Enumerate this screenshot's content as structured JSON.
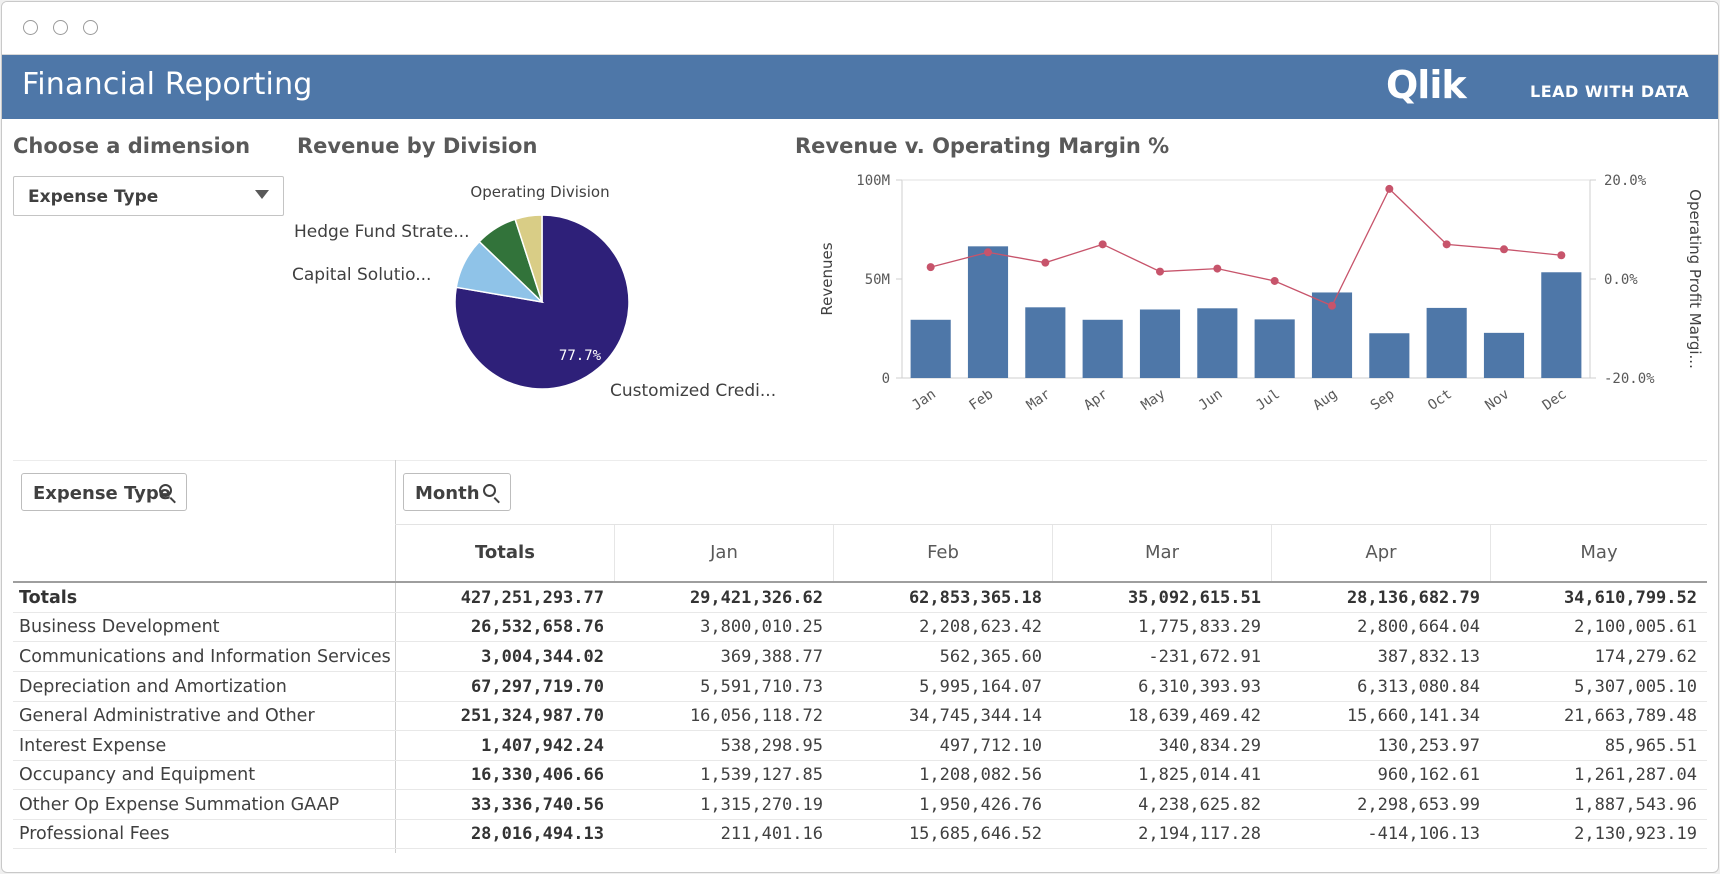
{
  "window": {
    "controls": [
      "close",
      "minimize",
      "maximize"
    ]
  },
  "banner": {
    "title": "Financial Reporting",
    "brand": "Qlik",
    "tagline": "LEAD WITH DATA",
    "color": "#4e77a8"
  },
  "dimension_panel": {
    "title": "Choose a dimension",
    "selected": "Expense Type"
  },
  "pie_panel": {
    "title": "Revenue by Division",
    "legend_title": "Operating Division",
    "slice_labels": [
      "Customized Credi...",
      "Capital Solutio...",
      "Hedge Fund Strate...",
      ""
    ],
    "percent_label": "77.7%"
  },
  "combo_panel": {
    "title": "Revenue v. Operating Margin %",
    "y_left_label": "Revenues",
    "y_right_label": "Operating Profit Margi..."
  },
  "chart_data": [
    {
      "type": "pie",
      "title": "Revenue by Division",
      "legend_title": "Operating Division",
      "slices": [
        {
          "label": "Customized Credi...",
          "value": 77.7,
          "color": "#2e2079"
        },
        {
          "label": "Capital Solutio...",
          "value": 9.5,
          "color": "#8fc3e8"
        },
        {
          "label": "Hedge Fund Strate...",
          "value": 7.8,
          "color": "#32733a"
        },
        {
          "label": "",
          "value": 5.0,
          "color": "#d9cd86"
        }
      ]
    },
    {
      "type": "bar",
      "title": "Revenue v. Operating Margin %",
      "categories": [
        "Jan",
        "Feb",
        "Mar",
        "Apr",
        "May",
        "Jun",
        "Jul",
        "Aug",
        "Sep",
        "Oct",
        "Nov",
        "Dec"
      ],
      "series": [
        {
          "name": "Revenues",
          "type": "bar",
          "axis": "left",
          "color": "#4e77a8",
          "values": [
            29.4,
            66.5,
            35.7,
            29.4,
            34.6,
            35.2,
            29.6,
            43.2,
            22.6,
            35.4,
            22.8,
            53.4
          ]
        },
        {
          "name": "Operating Profit Margi...",
          "type": "line",
          "axis": "right",
          "color": "#c7546b",
          "values": [
            2.4,
            5.4,
            3.3,
            7.0,
            1.5,
            2.1,
            -0.4,
            -5.4,
            18.2,
            7.0,
            6.0,
            4.8
          ]
        }
      ],
      "ylabel": "Revenues",
      "y2label": "Operating Profit Margi...",
      "yticks": [
        "0",
        "50M",
        "100M"
      ],
      "ylim": [
        0,
        100
      ],
      "y2ticks": [
        "-20.0%",
        "0.0%",
        "20.0%"
      ],
      "y2lim": [
        -20,
        20
      ],
      "grid": false
    }
  ],
  "table": {
    "filter_row": {
      "label": "Expense Type"
    },
    "filter_col": {
      "label": "Month"
    },
    "columns": [
      "Totals",
      "Jan",
      "Feb",
      "Mar",
      "Apr",
      "May"
    ],
    "rows": [
      {
        "name": "Totals",
        "values": [
          "427,251,293.77",
          "29,421,326.62",
          "62,853,365.18",
          "35,092,615.51",
          "28,136,682.79",
          "34,610,799.52"
        ]
      },
      {
        "name": "Business Development",
        "values": [
          "26,532,658.76",
          "3,800,010.25",
          "2,208,623.42",
          "1,775,833.29",
          "2,800,664.04",
          "2,100,005.61"
        ]
      },
      {
        "name": "Communications and Information Services",
        "values": [
          "3,004,344.02",
          "369,388.77",
          "562,365.60",
          "-231,672.91",
          "387,832.13",
          "174,279.62"
        ]
      },
      {
        "name": "Depreciation and Amortization",
        "values": [
          "67,297,719.70",
          "5,591,710.73",
          "5,995,164.07",
          "6,310,393.93",
          "6,313,080.84",
          "5,307,005.10"
        ]
      },
      {
        "name": "General Administrative and Other",
        "values": [
          "251,324,987.70",
          "16,056,118.72",
          "34,745,344.14",
          "18,639,469.42",
          "15,660,141.34",
          "21,663,789.48"
        ]
      },
      {
        "name": "Interest Expense",
        "values": [
          "1,407,942.24",
          "538,298.95",
          "497,712.10",
          "340,834.29",
          "130,253.97",
          "85,965.51"
        ]
      },
      {
        "name": "Occupancy and Equipment",
        "values": [
          "16,330,406.66",
          "1,539,127.85",
          "1,208,082.56",
          "1,825,014.41",
          "960,162.61",
          "1,261,287.04"
        ]
      },
      {
        "name": "Other Op Expense Summation GAAP",
        "values": [
          "33,336,740.56",
          "1,315,270.19",
          "1,950,426.76",
          "4,238,625.82",
          "2,298,653.99",
          "1,887,543.96"
        ]
      },
      {
        "name": "Professional Fees",
        "values": [
          "28,016,494.13",
          "211,401.16",
          "15,685,646.52",
          "2,194,117.28",
          "-414,106.13",
          "2,130,923.19"
        ]
      }
    ]
  }
}
